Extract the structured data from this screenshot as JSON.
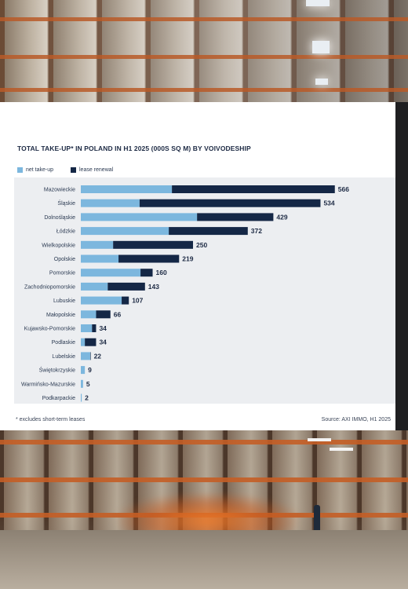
{
  "chart_data": {
    "type": "bar",
    "stacked": true,
    "orientation": "horizontal",
    "title": "TOTAL TAKE-UP* IN POLAND IN H1 2025 (000S SQ M) BY VOIVODESHIP",
    "categories": [
      "Mazowieckie",
      "Śląskie",
      "Dolnośląskie",
      "Łódzkie",
      "Wielkopolskie",
      "Opolskie",
      "Pomorskie",
      "Zachodniopomorskie",
      "Lubuskie",
      "Małopolskie",
      "Kujawsko-Pomorskie",
      "Podlaskie",
      "Lubelskie",
      "Świętokrzyskie",
      "Warmińsko-Mazurskie",
      "Podkarpackie"
    ],
    "series": [
      {
        "name": "net take-up",
        "color": "#7cb7de",
        "values": [
          203,
          131,
          259,
          196,
          72,
          84,
          133,
          60,
          91,
          34,
          25,
          9,
          21,
          9,
          5,
          2
        ]
      },
      {
        "name": "lease renewal",
        "color": "#142746",
        "values": [
          363,
          403,
          170,
          176,
          178,
          135,
          27,
          83,
          16,
          32,
          9,
          25,
          1,
          0,
          0,
          0
        ]
      }
    ],
    "totals": [
      "566",
      "534",
      "429",
      "372",
      "250",
      "219",
      "160",
      "143",
      "107",
      "66",
      "34",
      "34",
      "22",
      "9",
      "5",
      "2"
    ],
    "xlim": [
      0,
      600
    ],
    "grid": false,
    "legend": "top-left",
    "footnote": "* excludes short-term leases",
    "source": "Source: AXI IMMO, H1 2025"
  }
}
